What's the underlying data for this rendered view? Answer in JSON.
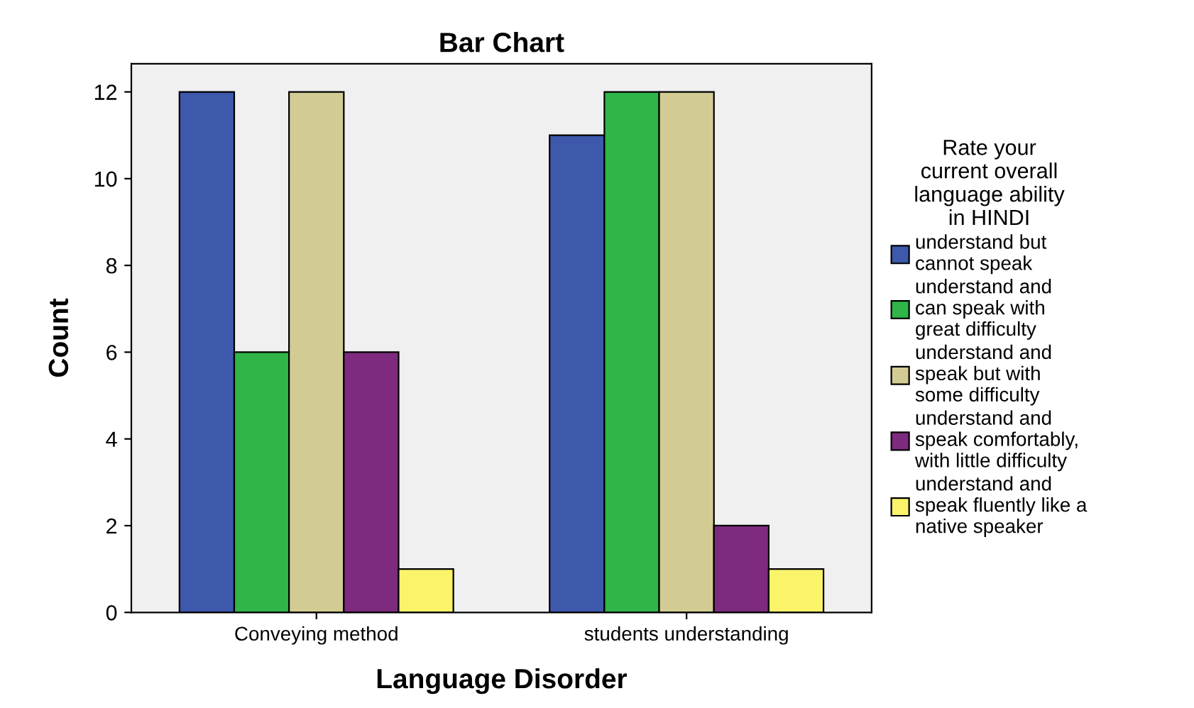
{
  "chart_data": {
    "type": "bar",
    "title": "Bar Chart",
    "xlabel": "Language Disorder",
    "ylabel": "Count",
    "legend_title": "Rate your\ncurrent overall\nlanguage ability\nin HINDI",
    "categories": [
      "Conveying method",
      "students understanding"
    ],
    "series": [
      {
        "name": "understand but\ncannot speak",
        "color": "#3e58ac",
        "values": [
          12,
          11
        ]
      },
      {
        "name": "understand and\ncan speak with\ngreat difficulty",
        "color": "#2fb548",
        "values": [
          6,
          12
        ]
      },
      {
        "name": "understand and\nspeak but with\nsome difficulty",
        "color": "#d2cc94",
        "values": [
          12,
          12
        ]
      },
      {
        "name": "understand and\nspeak comfortably,\nwith little difficulty",
        "color": "#7e2a7e",
        "values": [
          6,
          2
        ]
      },
      {
        "name": "understand and\nspeak fluently like a\nnative speaker",
        "color": "#fbf46b",
        "values": [
          1,
          1
        ]
      }
    ],
    "ylim": [
      0,
      12.65
    ],
    "yticks": [
      0,
      2,
      4,
      6,
      8,
      10,
      12
    ],
    "grid": false,
    "legend": "right"
  }
}
